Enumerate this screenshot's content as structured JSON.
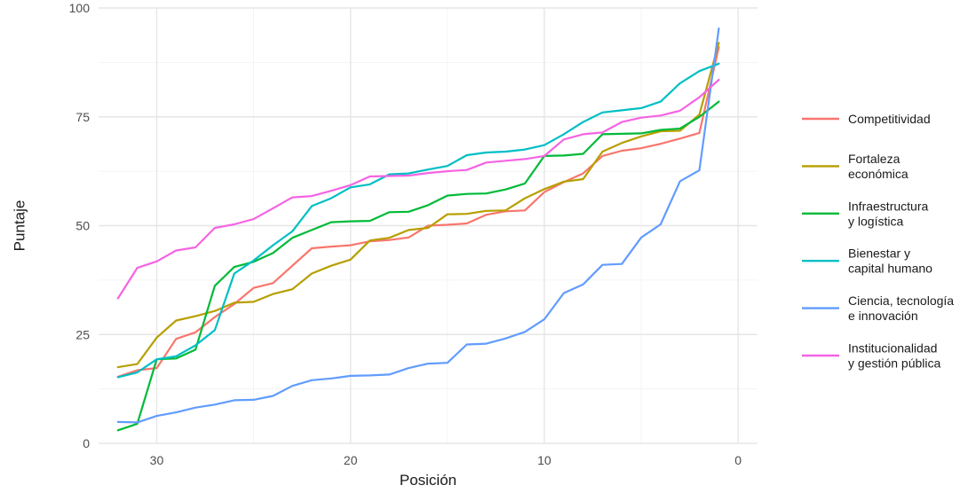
{
  "chart_data": {
    "type": "line",
    "title": "",
    "xlabel": "Posición",
    "ylabel": "Puntaje",
    "xlim": [
      33,
      -1
    ],
    "ylim": [
      0,
      100
    ],
    "x_reversed": true,
    "x_ticks": [
      30,
      20,
      10,
      0
    ],
    "y_ticks": [
      0,
      25,
      50,
      75,
      100
    ],
    "grid": true,
    "legend_position": "right",
    "x": [
      32,
      31,
      30,
      29,
      28,
      27,
      26,
      25,
      24,
      23,
      22,
      21,
      20,
      19,
      18,
      17,
      16,
      15,
      14,
      13,
      12,
      11,
      10,
      9,
      8,
      7,
      6,
      5,
      4,
      3,
      2,
      1
    ],
    "series": [
      {
        "name": "Competitividad",
        "color": "#F8766D",
        "values": [
          15.3,
          16.8,
          17.3,
          24.0,
          25.5,
          29.0,
          32.0,
          35.7,
          36.8,
          40.8,
          44.8,
          45.2,
          45.5,
          46.4,
          46.7,
          47.3,
          50.0,
          50.2,
          50.5,
          52.5,
          53.3,
          53.5,
          57.7,
          60.0,
          62.0,
          66.0,
          67.2,
          67.8,
          68.8,
          70.0,
          71.3,
          91.0
        ]
      },
      {
        "name": "Fortaleza\neconómica",
        "color": "#B79F00",
        "values": [
          17.5,
          18.2,
          24.3,
          28.2,
          29.2,
          30.4,
          32.3,
          32.5,
          34.3,
          35.4,
          39.0,
          40.8,
          42.2,
          46.6,
          47.2,
          49.0,
          49.5,
          52.6,
          52.7,
          53.4,
          53.5,
          56.3,
          58.4,
          60.1,
          60.7,
          67.0,
          69.0,
          70.5,
          71.7,
          71.8,
          75.5,
          92.0
        ]
      },
      {
        "name": "Infraestructura\ny logística",
        "color": "#00BA38",
        "values": [
          3.0,
          4.5,
          19.3,
          19.5,
          21.5,
          36.2,
          40.5,
          41.7,
          43.7,
          47.2,
          49.0,
          50.8,
          51.0,
          51.1,
          53.1,
          53.2,
          54.7,
          56.9,
          57.3,
          57.4,
          58.3,
          59.7,
          66.0,
          66.1,
          66.5,
          71.0,
          71.1,
          71.2,
          72.0,
          72.3,
          75.0,
          78.5
        ]
      },
      {
        "name": "Bienestar y\ncapital humano",
        "color": "#00BFC4",
        "values": [
          15.2,
          16.3,
          19.3,
          20.0,
          22.5,
          26.0,
          39.0,
          42.0,
          45.5,
          48.7,
          54.5,
          56.3,
          58.8,
          59.5,
          61.8,
          62.0,
          62.9,
          63.7,
          66.2,
          66.8,
          67.0,
          67.5,
          68.5,
          71.0,
          73.8,
          76.0,
          76.5,
          77.0,
          78.5,
          82.7,
          85.5,
          87.2
        ]
      },
      {
        "name": "Ciencia, tecnología\ne innovación",
        "color": "#619CFF",
        "values": [
          4.9,
          4.8,
          6.3,
          7.1,
          8.2,
          8.9,
          9.9,
          10.0,
          10.9,
          13.2,
          14.5,
          14.9,
          15.5,
          15.6,
          15.8,
          17.3,
          18.3,
          18.5,
          22.7,
          22.9,
          24.1,
          25.6,
          28.5,
          34.5,
          36.5,
          41.0,
          41.2,
          47.3,
          50.3,
          60.2,
          62.7,
          95.3
        ]
      },
      {
        "name": "Institucionalidad\ny gestión pública",
        "color": "#F564E3",
        "values": [
          33.3,
          40.3,
          41.8,
          44.3,
          45.0,
          49.5,
          50.3,
          51.5,
          54.0,
          56.5,
          56.8,
          58.0,
          59.3,
          61.3,
          61.4,
          61.5,
          62.1,
          62.5,
          62.8,
          64.5,
          64.9,
          65.3,
          66.0,
          69.8,
          71.0,
          71.4,
          73.8,
          74.8,
          75.3,
          76.4,
          79.5,
          83.5
        ]
      }
    ]
  }
}
